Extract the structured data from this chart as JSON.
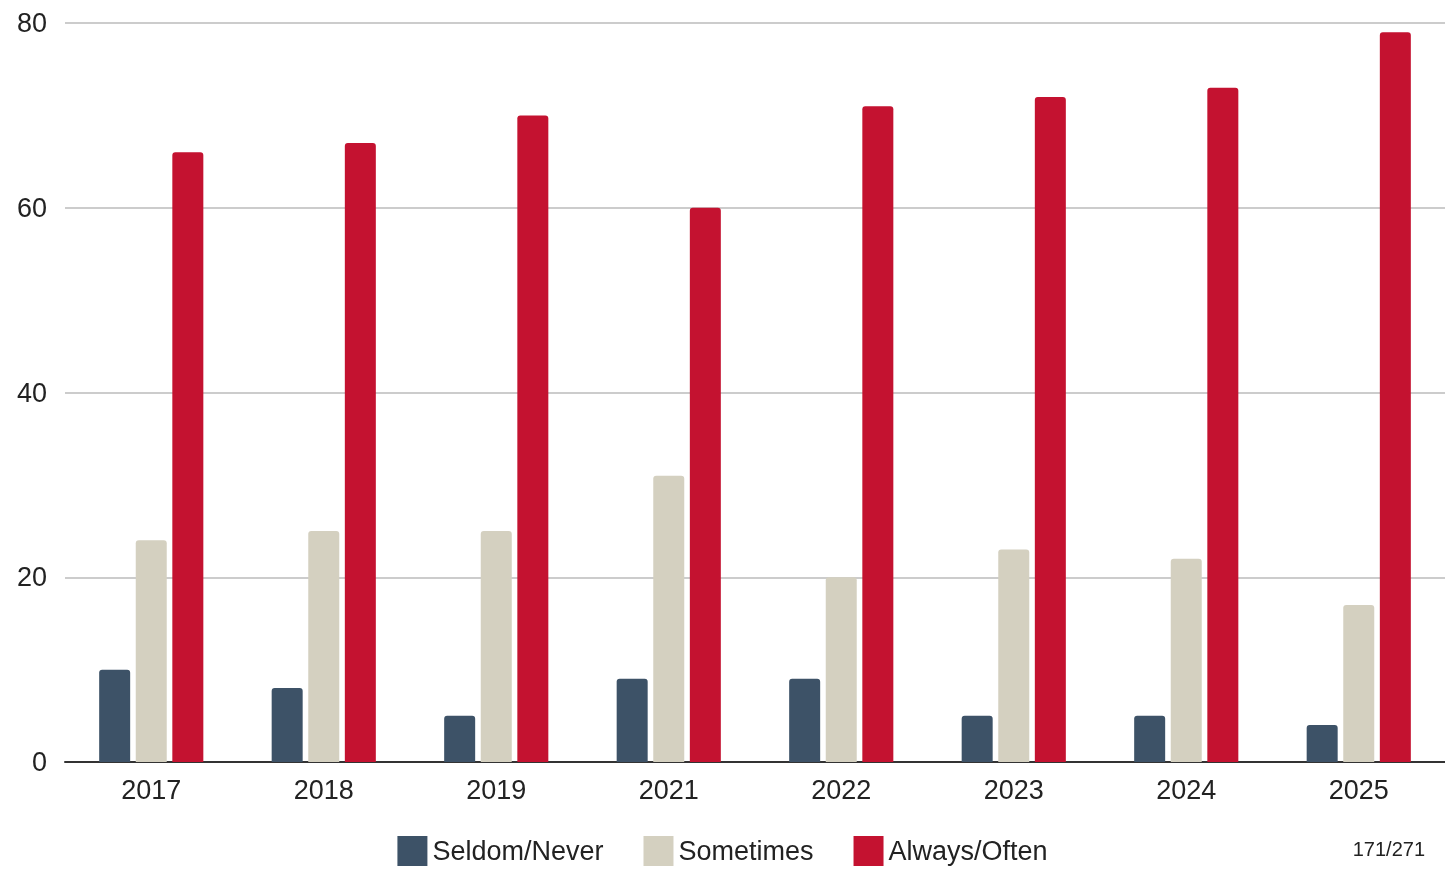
{
  "chart_data": {
    "type": "bar",
    "categories": [
      "2017",
      "2018",
      "2019",
      "2021",
      "2022",
      "2023",
      "2024",
      "2025"
    ],
    "series": [
      {
        "name": "Seldom/Never",
        "color": "#3d5267",
        "values": [
          10,
          8,
          5,
          9,
          9,
          5,
          5,
          4
        ]
      },
      {
        "name": "Sometimes",
        "color": "#d4d0c0",
        "values": [
          24,
          25,
          25,
          31,
          20,
          23,
          22,
          17
        ]
      },
      {
        "name": "Always/Often",
        "color": "#c41230",
        "values": [
          66,
          67,
          70,
          60,
          71,
          72,
          73,
          79
        ]
      }
    ],
    "ylim": [
      0,
      80
    ],
    "yticks": [
      0,
      20,
      40,
      60,
      80
    ],
    "grid": "y",
    "legend": "bottom",
    "annotations": [
      "171/271"
    ]
  }
}
